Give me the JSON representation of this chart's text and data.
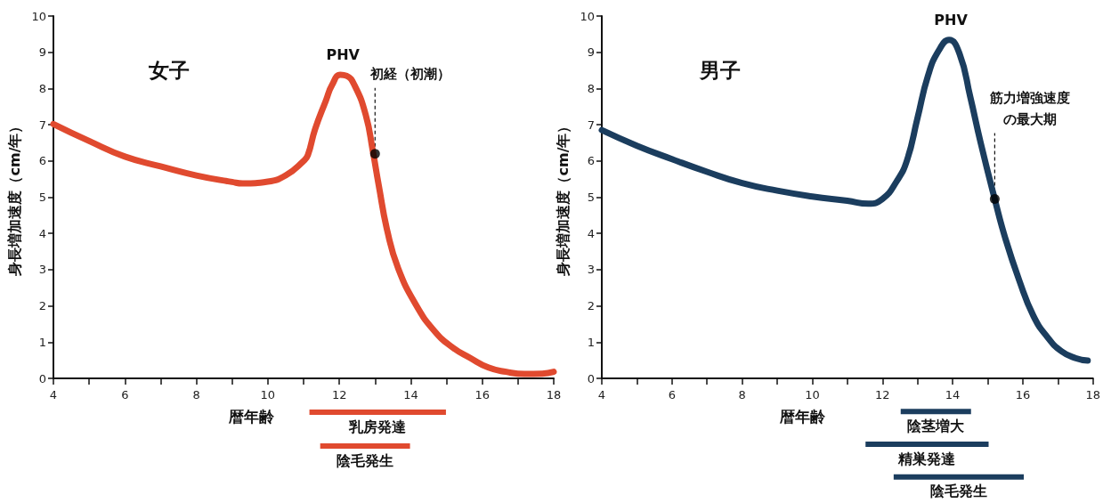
{
  "chart_data": [
    {
      "type": "line",
      "title": "女子",
      "xlabel": "暦年齢",
      "ylabel": "身長増加速度（cm/年）",
      "xlim": [
        4,
        18
      ],
      "xticks": [
        4,
        {
          "value": 5,
          "label": null
        },
        6,
        {
          "value": 7,
          "label": null
        },
        8,
        {
          "value": 9,
          "label": null
        },
        10,
        {
          "value": 11,
          "label": null
        },
        12,
        {
          "value": 13,
          "label": null
        },
        14,
        {
          "value": 15,
          "label": null
        },
        16,
        {
          "value": 17,
          "label": null
        },
        18
      ],
      "ylim": [
        0,
        10
      ],
      "yticks": [
        0,
        1,
        2,
        3,
        4,
        5,
        6,
        7,
        8,
        9,
        10
      ],
      "series": [
        {
          "type": "line",
          "color": "#e04a2f",
          "marker": "none",
          "line_style": "solid",
          "x": [
            4,
            5,
            6,
            7,
            8,
            9,
            9.3,
            10,
            10.5,
            11,
            11.12,
            11.32,
            11.63,
            11.8,
            12.03,
            12.2,
            12.43,
            12.74,
            12.94,
            13.1,
            13.35,
            13.65,
            14.15,
            14.66,
            15.16,
            15.67,
            16.17,
            16.67,
            17.18,
            17.68,
            18
          ],
          "values": [
            7.02,
            6.55,
            6.12,
            5.85,
            5.6,
            5.42,
            5.38,
            5.43,
            5.6,
            6.0,
            6.16,
            6.87,
            7.68,
            8.1,
            8.38,
            8.35,
            8.08,
            7.27,
            6.26,
            5.35,
            4.04,
            3.03,
            2.02,
            1.31,
            0.86,
            0.56,
            0.3,
            0.18,
            0.12,
            0.13,
            0.18
          ]
        },
        {
          "type": "scatter",
          "color": "#000000",
          "marker": "circle",
          "x": [
            13
          ],
          "values": [
            6.2
          ]
        }
      ],
      "annotations": [
        {
          "text": "PHV",
          "x": 12.1,
          "y": 8.4
        },
        {
          "text": "初経（初潮）",
          "x": 13,
          "y": 6.2
        }
      ]
    },
    {
      "type": "bar",
      "orientation": "horizontal",
      "categories": [
        "乳房発達",
        "陰毛発生"
      ],
      "base": [
        11.2,
        11.5
      ],
      "values": [
        3.8,
        2.5
      ],
      "color": "#e04a2f",
      "xlim": [
        4,
        18
      ],
      "tick_labels": false
    },
    {
      "type": "line",
      "title": "男子",
      "xlabel": "暦年齢",
      "ylabel": "身長増加速度（cm/年）",
      "xlim": [
        4,
        18
      ],
      "xticks": [
        4,
        {
          "value": 5,
          "label": null
        },
        6,
        {
          "value": 7,
          "label": null
        },
        8,
        {
          "value": 9,
          "label": null
        },
        10,
        {
          "value": 11,
          "label": null
        },
        12,
        {
          "value": 13,
          "label": null
        },
        14,
        {
          "value": 15,
          "label": null
        },
        16,
        {
          "value": 17,
          "label": null
        },
        18
      ],
      "ylim": [
        0,
        10
      ],
      "yticks": [
        0,
        1,
        2,
        3,
        4,
        5,
        6,
        7,
        8,
        9,
        10
      ],
      "series": [
        {
          "type": "line",
          "color": "#1b3d5e",
          "marker": "none",
          "line_style": "solid",
          "x": [
            4,
            5,
            6,
            7,
            8,
            9,
            10,
            11,
            11.6,
            12,
            12.4,
            12.7,
            13,
            13.3,
            13.6,
            13.9,
            14.2,
            14.5,
            14.8,
            15.2,
            15.5,
            15.9,
            16.3,
            16.7,
            17.1,
            17.5,
            17.85
          ],
          "values": [
            6.85,
            6.42,
            6.05,
            5.7,
            5.39,
            5.18,
            5.02,
            4.9,
            4.82,
            4.95,
            5.43,
            6.02,
            7.19,
            8.36,
            9.04,
            9.34,
            8.95,
            7.78,
            6.5,
            4.95,
            3.87,
            2.7,
            1.73,
            1.14,
            0.75,
            0.56,
            0.49
          ]
        },
        {
          "type": "scatter",
          "color": "#000000",
          "marker": "circle",
          "x": [
            15.2
          ],
          "values": [
            4.95
          ]
        }
      ],
      "annotations": [
        {
          "text": "PHV",
          "x": 13.95,
          "y": 9.35
        },
        {
          "text": "筋力増強速度の最大期",
          "x": 15.2,
          "y": 4.95
        }
      ]
    },
    {
      "type": "bar",
      "orientation": "horizontal",
      "categories": [
        "陰茎増大",
        "精巣発達",
        "陰毛発生"
      ],
      "base": [
        12.5,
        11.5,
        12.3
      ],
      "values": [
        2.0,
        3.5,
        3.7
      ],
      "color": "#1b3d5e",
      "xlim": [
        4,
        18
      ],
      "tick_labels": false
    }
  ]
}
